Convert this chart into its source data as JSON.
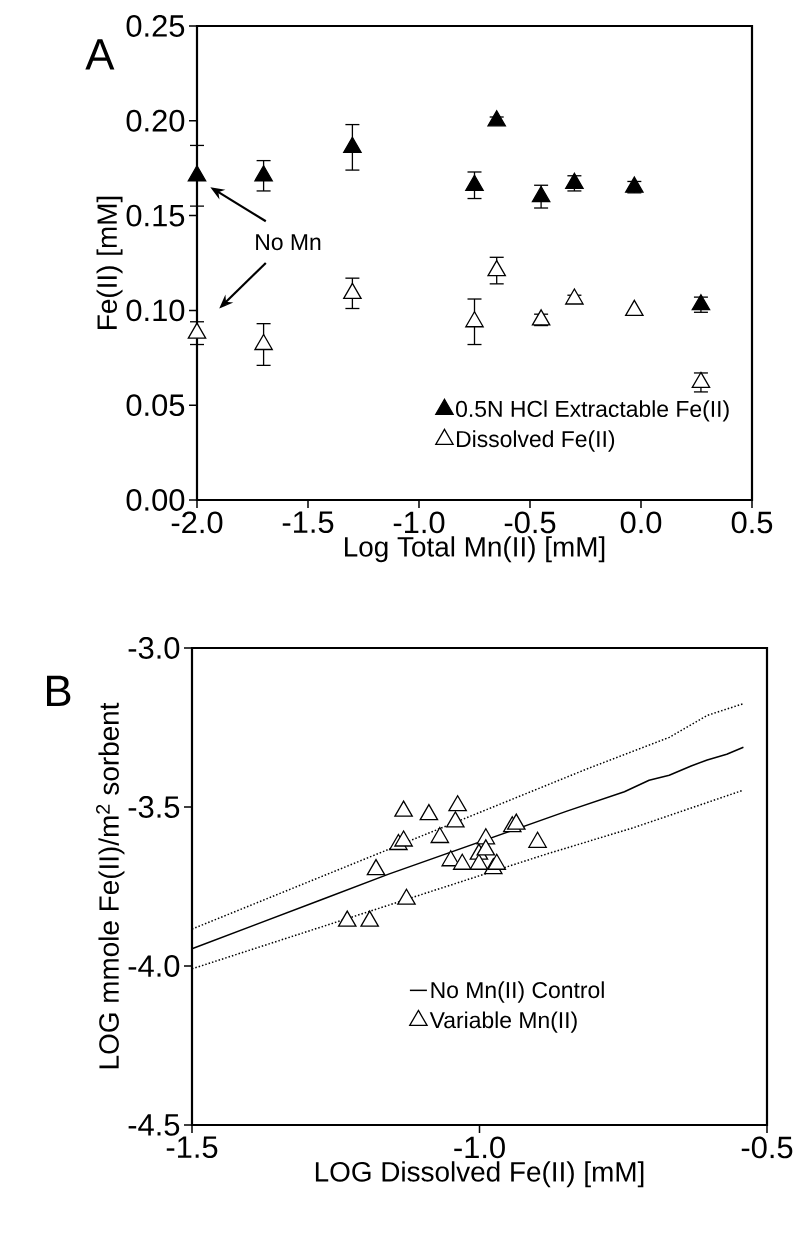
{
  "chart_data": [
    {
      "type": "scatter",
      "title": "A",
      "xlabel": "Log Total Mn(II) [mM]",
      "ylabel": "Fe(II) [mM]",
      "marker": "triangle",
      "legend": "bottom right",
      "annotations": [
        "No Mn"
      ],
      "xlim": [
        -2,
        0.5
      ],
      "ylim": [
        0,
        0.25
      ],
      "xticks": [
        {
          "value": -2,
          "label": "-2.0"
        },
        {
          "value": -1.5,
          "label": "-1.5"
        },
        {
          "value": -1,
          "label": "-1.0"
        },
        {
          "value": -0.5,
          "label": "-0.5"
        },
        {
          "value": 0,
          "label": "0.0"
        },
        {
          "value": 0.5,
          "label": "0.5"
        }
      ],
      "yticks": [
        {
          "value": 0,
          "label": "0.00"
        },
        {
          "value": 0.05,
          "label": "0.05"
        },
        {
          "value": 0.1,
          "label": "0.10"
        },
        {
          "value": 0.15,
          "label": "0.15"
        },
        {
          "value": 0.2,
          "label": "0.20"
        },
        {
          "value": 0.25,
          "label": "0.25"
        }
      ],
      "series": [
        {
          "name": "0.5N HCl Extractable Fe(II)",
          "color": "#000000",
          "x": [
            -2.0,
            -1.7,
            -1.3,
            -0.75,
            -0.65,
            -0.45,
            -0.3,
            -0.03,
            0.27
          ],
          "values": [
            0.171,
            0.171,
            0.186,
            0.166,
            0.2,
            0.16,
            0.167,
            0.165,
            0.103
          ],
          "errors": [
            0.016,
            0.008,
            0.012,
            0.007,
            0.002,
            0.006,
            0.004,
            0.003,
            0.004
          ]
        },
        {
          "name": "Dissolved Fe(II)",
          "color": "#ffffff",
          "x": [
            -2.0,
            -1.7,
            -1.3,
            -0.75,
            -0.65,
            -0.45,
            -0.3,
            -0.03,
            0.27
          ],
          "values": [
            0.088,
            0.082,
            0.109,
            0.094,
            0.121,
            0.095,
            0.106,
            0.1,
            0.062
          ],
          "errors": [
            0.006,
            0.011,
            0.008,
            0.012,
            0.007,
            0.003,
            0.002,
            null,
            0.005
          ]
        }
      ]
    },
    {
      "type": "scatter",
      "title": "B",
      "xlabel": "LOG Dissolved Fe(II) [mM]",
      "ylabel": "LOG mmole Fe(II)/m$^{2}$ sorbent",
      "legend": "bottom",
      "xlim": [
        -1.5,
        -0.5
      ],
      "ylim": [
        -4.5,
        -3.0
      ],
      "xticks": [
        {
          "value": -1.5,
          "label": "-1.5"
        },
        {
          "value": -1,
          "label": "-1.0"
        },
        {
          "value": -0.5,
          "label": "-0.5"
        }
      ],
      "yticks": [
        {
          "value": -4.5,
          "label": "-4.5"
        },
        {
          "value": -4,
          "label": "-4.0"
        },
        {
          "value": -3.5,
          "label": "-3.5"
        },
        {
          "value": -3,
          "label": "-3.0"
        }
      ],
      "series": [
        {
          "name": "No Mn(II) Control",
          "type": "line",
          "marker": "none",
          "line_style": "solid",
          "color": "#000000",
          "x": [
            -1.5,
            -1.274,
            -1.158,
            -0.848,
            -0.748,
            -0.705,
            -0.67,
            -0.632,
            -0.604,
            -0.57,
            -0.541
          ],
          "values": [
            -3.946,
            -3.791,
            -3.711,
            -3.513,
            -3.452,
            -3.416,
            -3.4,
            -3.371,
            -3.352,
            -3.334,
            -3.312
          ]
        },
        {
          "type": "line",
          "marker": "none",
          "line_style": "dotted",
          "color": "#000000",
          "x": [
            -1.5,
            -0.81,
            -0.67,
            -0.604,
            -0.541
          ],
          "values": [
            -3.884,
            -3.378,
            -3.281,
            -3.212,
            -3.175
          ]
        },
        {
          "type": "line",
          "marker": "none",
          "line_style": "dotted",
          "color": "#000000",
          "x": [
            -1.5,
            -0.887,
            -0.732,
            -0.541
          ],
          "values": [
            -4.009,
            -3.65,
            -3.565,
            -3.447
          ]
        },
        {
          "name": "Variable Mn(II)",
          "marker": "triangle",
          "color": "#ffffff",
          "x": [
            -1.23,
            -1.191,
            -1.127,
            -1.18,
            -1.141,
            -1.132,
            -1.132,
            -1.088,
            -1.038,
            -1.042,
            -1.069,
            -1.05,
            -1.03,
            -1.001,
            -1.001,
            -0.989,
            -0.989,
            -0.976,
            -0.97,
            -0.943,
            -0.936,
            -0.899
          ],
          "values": [
            -3.859,
            -3.859,
            -3.79,
            -3.697,
            -3.618,
            -3.607,
            -3.513,
            -3.524,
            -3.496,
            -3.547,
            -3.596,
            -3.669,
            -3.68,
            -3.648,
            -3.68,
            -3.6,
            -3.635,
            -3.694,
            -3.68,
            -3.562,
            -3.554,
            -3.611
          ]
        }
      ]
    }
  ]
}
